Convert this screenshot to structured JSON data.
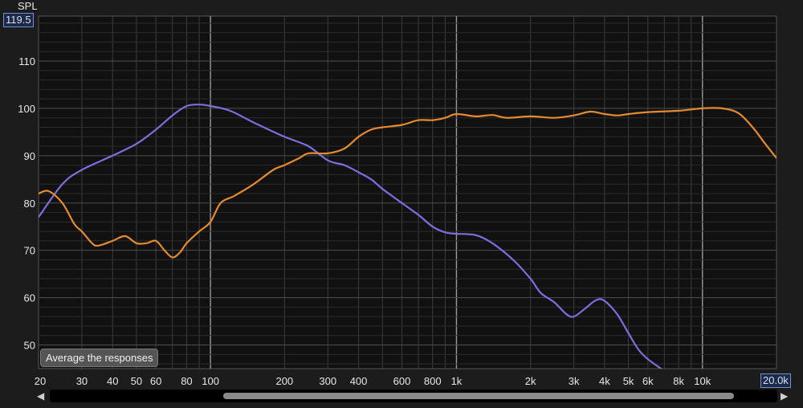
{
  "chart_data": {
    "type": "line",
    "title": "",
    "ylabel": "SPL",
    "xlabel": "",
    "xscale": "log",
    "xlim": [
      20,
      20000
    ],
    "ylim": [
      45,
      119.5
    ],
    "ylim_max_label": "119.5",
    "xlim_max_label": "20.0k",
    "x_ticks": [
      {
        "v": 20,
        "label": "20"
      },
      {
        "v": 30,
        "label": "30"
      },
      {
        "v": 40,
        "label": "40"
      },
      {
        "v": 50,
        "label": "50"
      },
      {
        "v": 60,
        "label": "60"
      },
      {
        "v": 80,
        "label": "80"
      },
      {
        "v": 100,
        "label": "100"
      },
      {
        "v": 200,
        "label": "200"
      },
      {
        "v": 300,
        "label": "300"
      },
      {
        "v": 400,
        "label": "400"
      },
      {
        "v": 600,
        "label": "600"
      },
      {
        "v": 800,
        "label": "800"
      },
      {
        "v": 1000,
        "label": "1k"
      },
      {
        "v": 2000,
        "label": "2k"
      },
      {
        "v": 3000,
        "label": "3k"
      },
      {
        "v": 4000,
        "label": "4k"
      },
      {
        "v": 5000,
        "label": "5k"
      },
      {
        "v": 6000,
        "label": "6k"
      },
      {
        "v": 8000,
        "label": "8k"
      },
      {
        "v": 10000,
        "label": "10k"
      }
    ],
    "y_ticks": [
      {
        "v": 50,
        "label": "50"
      },
      {
        "v": 60,
        "label": "60"
      },
      {
        "v": 70,
        "label": "70"
      },
      {
        "v": 80,
        "label": "80"
      },
      {
        "v": 90,
        "label": "90"
      },
      {
        "v": 100,
        "label": "100"
      },
      {
        "v": 110,
        "label": "110"
      }
    ],
    "grid": true,
    "series": [
      {
        "color": "#7b6fe0",
        "points": [
          [
            20,
            77
          ],
          [
            25,
            84
          ],
          [
            30,
            87
          ],
          [
            40,
            90
          ],
          [
            50,
            92.5
          ],
          [
            60,
            95.5
          ],
          [
            70,
            98.5
          ],
          [
            80,
            100.5
          ],
          [
            90,
            100.8
          ],
          [
            100,
            100.5
          ],
          [
            120,
            99.5
          ],
          [
            150,
            97
          ],
          [
            200,
            94
          ],
          [
            250,
            92
          ],
          [
            300,
            89
          ],
          [
            350,
            88
          ],
          [
            400,
            86.5
          ],
          [
            450,
            85
          ],
          [
            500,
            83
          ],
          [
            600,
            80
          ],
          [
            700,
            77.5
          ],
          [
            800,
            75
          ],
          [
            900,
            73.8
          ],
          [
            1000,
            73.5
          ],
          [
            1200,
            73.2
          ],
          [
            1400,
            71.5
          ],
          [
            1700,
            68
          ],
          [
            2000,
            64
          ],
          [
            2200,
            61
          ],
          [
            2500,
            59
          ],
          [
            2800,
            56.5
          ],
          [
            3000,
            56
          ],
          [
            3300,
            57.5
          ],
          [
            3700,
            59.5
          ],
          [
            4000,
            59.3
          ],
          [
            4500,
            56.5
          ],
          [
            5000,
            52.5
          ],
          [
            5500,
            49
          ],
          [
            6000,
            47
          ],
          [
            7000,
            44.5
          ]
        ]
      },
      {
        "color": "#e58a2e",
        "points": [
          [
            20,
            82
          ],
          [
            22,
            82.5
          ],
          [
            25,
            80
          ],
          [
            28,
            75.5
          ],
          [
            30,
            74
          ],
          [
            33,
            71.5
          ],
          [
            35,
            71
          ],
          [
            40,
            72
          ],
          [
            45,
            73
          ],
          [
            50,
            71.5
          ],
          [
            55,
            71.5
          ],
          [
            60,
            72
          ],
          [
            65,
            70
          ],
          [
            70,
            68.5
          ],
          [
            75,
            69.5
          ],
          [
            80,
            71.5
          ],
          [
            90,
            74
          ],
          [
            100,
            76
          ],
          [
            110,
            80
          ],
          [
            125,
            81.5
          ],
          [
            150,
            84
          ],
          [
            180,
            87
          ],
          [
            200,
            88
          ],
          [
            230,
            89.5
          ],
          [
            250,
            90.5
          ],
          [
            300,
            90.5
          ],
          [
            350,
            91.5
          ],
          [
            400,
            94
          ],
          [
            450,
            95.5
          ],
          [
            500,
            96
          ],
          [
            600,
            96.5
          ],
          [
            700,
            97.5
          ],
          [
            800,
            97.5
          ],
          [
            900,
            98
          ],
          [
            1000,
            98.8
          ],
          [
            1200,
            98.3
          ],
          [
            1400,
            98.6
          ],
          [
            1600,
            98
          ],
          [
            2000,
            98.3
          ],
          [
            2500,
            98
          ],
          [
            3000,
            98.5
          ],
          [
            3500,
            99.3
          ],
          [
            4000,
            98.8
          ],
          [
            4500,
            98.5
          ],
          [
            5000,
            98.8
          ],
          [
            6000,
            99.2
          ],
          [
            8000,
            99.5
          ],
          [
            10000,
            100
          ],
          [
            12000,
            100
          ],
          [
            14000,
            99
          ],
          [
            16000,
            96
          ],
          [
            18000,
            92.5
          ],
          [
            20000,
            89.5
          ]
        ]
      }
    ]
  },
  "ui": {
    "average_button_label": "Average the responses"
  }
}
